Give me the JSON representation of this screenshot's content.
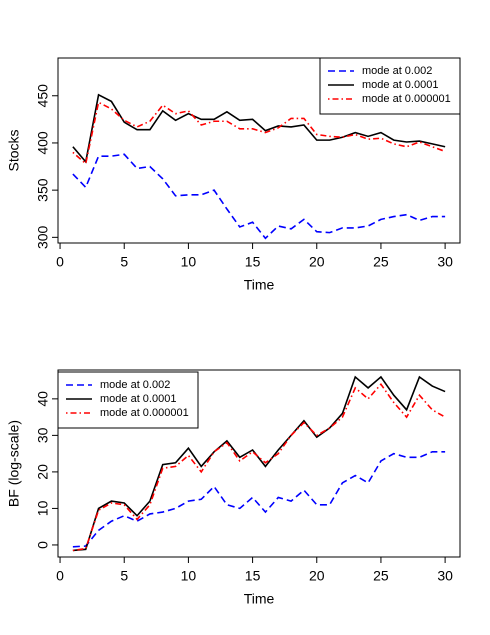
{
  "chart_data": [
    {
      "type": "line",
      "xlabel": "Time",
      "ylabel": "Stocks",
      "legend": "top-right",
      "x": [
        1,
        2,
        3,
        4,
        5,
        6,
        7,
        8,
        9,
        10,
        11,
        12,
        13,
        14,
        15,
        16,
        17,
        18,
        19,
        20,
        21,
        22,
        23,
        24,
        25,
        26,
        27,
        28,
        29,
        30
      ],
      "xlim": [
        -0.16,
        31.16
      ],
      "xticks": [
        0,
        5,
        10,
        15,
        20,
        25,
        30
      ],
      "ylim": [
        294,
        490
      ],
      "yticks": [
        300,
        350,
        400,
        450
      ],
      "series": [
        {
          "name": "mode at 0.002",
          "color": "#0000ff",
          "linestyle": "dashed",
          "values": [
            367,
            353,
            386,
            386,
            388,
            373,
            375,
            362,
            344,
            345,
            345,
            350,
            330,
            311,
            316,
            299,
            312,
            309,
            319,
            306,
            305,
            310,
            310,
            312,
            319,
            322,
            324,
            318,
            322,
            322
          ]
        },
        {
          "name": "mode at 0.0001",
          "color": "#000000",
          "linestyle": "solid",
          "values": [
            396,
            380,
            451,
            444,
            422,
            414,
            414,
            434,
            424,
            431,
            425,
            425,
            433,
            424,
            425,
            413,
            418,
            417,
            419,
            403,
            403,
            406,
            411,
            407,
            411,
            403,
            401,
            402,
            399,
            396
          ]
        },
        {
          "name": "mode at 0.000001",
          "color": "#ff0000",
          "linestyle": "dotdash",
          "values": [
            390,
            378,
            443,
            436,
            424,
            417,
            423,
            440,
            431,
            434,
            419,
            423,
            423,
            415,
            415,
            411,
            416,
            426,
            426,
            409,
            407,
            406,
            409,
            404,
            405,
            399,
            396,
            401,
            396,
            391
          ]
        }
      ]
    },
    {
      "type": "line",
      "xlabel": "Time",
      "ylabel": "BF (log-scale)",
      "legend": "top-left",
      "x": [
        1,
        2,
        3,
        4,
        5,
        6,
        7,
        8,
        9,
        10,
        11,
        12,
        13,
        14,
        15,
        16,
        17,
        18,
        19,
        20,
        21,
        22,
        23,
        24,
        25,
        26,
        27,
        28,
        29,
        30
      ],
      "xlim": [
        -0.16,
        31.16
      ],
      "xticks": [
        0,
        5,
        10,
        15,
        20,
        25,
        30
      ],
      "ylim": [
        -3.3,
        47.9
      ],
      "yticks": [
        0,
        10,
        20,
        30,
        40
      ],
      "series": [
        {
          "name": "mode at 0.002",
          "color": "#0000ff",
          "linestyle": "dashed",
          "values": [
            -0.5,
            -0.3,
            4,
            6.5,
            8,
            6.5,
            8.5,
            9,
            10,
            12,
            12.5,
            16,
            11,
            10,
            13,
            9,
            13,
            12,
            15,
            11,
            11,
            17,
            19,
            17,
            23,
            25,
            24,
            24,
            25.5,
            25.5
          ]
        },
        {
          "name": "mode at 0.0001",
          "color": "#000000",
          "linestyle": "solid",
          "values": [
            -1.5,
            -1.2,
            10,
            12,
            11.5,
            8,
            12,
            22,
            22.5,
            26.5,
            21.5,
            25.5,
            28.5,
            24,
            26,
            21.5,
            26,
            30,
            34,
            29.5,
            32,
            36,
            46,
            43,
            46,
            41,
            37,
            46,
            43.5,
            42
          ]
        },
        {
          "name": "mode at 0.000001",
          "color": "#ff0000",
          "linestyle": "dotdash",
          "values": [
            -1.5,
            -1,
            9.5,
            11.5,
            11,
            7,
            11,
            21,
            21.5,
            24.5,
            20,
            25.5,
            28,
            23,
            25.5,
            22.5,
            25,
            30,
            33.5,
            30,
            32,
            35,
            43,
            40,
            44,
            39,
            35,
            41,
            37,
            35
          ]
        }
      ]
    }
  ]
}
